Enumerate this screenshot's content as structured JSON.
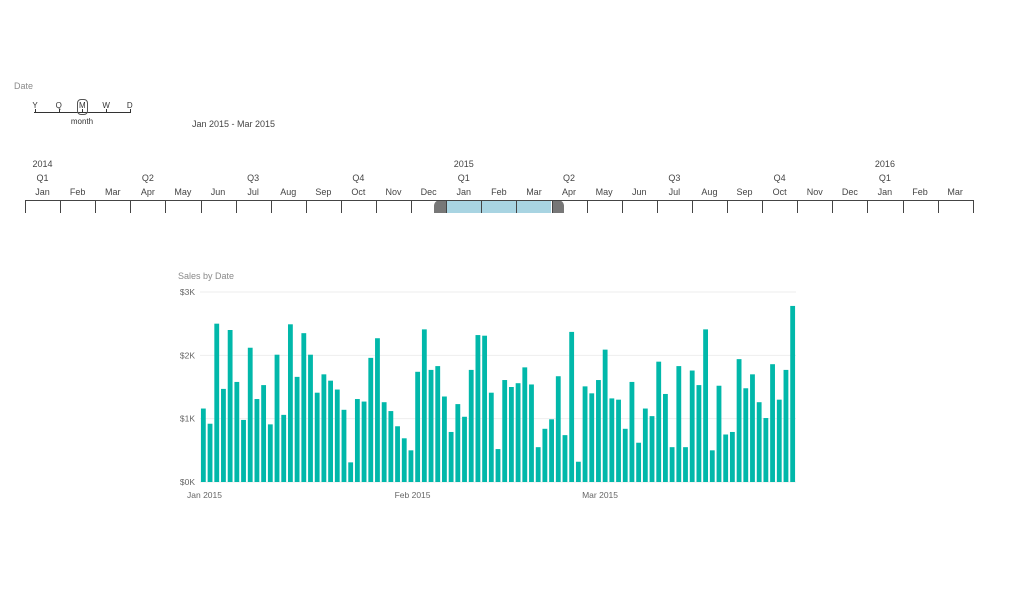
{
  "slicer": {
    "label": "Date",
    "granularity_letters": [
      "Y",
      "Q",
      "M",
      "W",
      "D"
    ],
    "selected_granularity": "M",
    "granularity_caption": "month",
    "range_label": "Jan 2015 - Mar 2015"
  },
  "timeline": {
    "months": [
      "Jan",
      "Feb",
      "Mar",
      "Apr",
      "May",
      "Jun",
      "Jul",
      "Aug",
      "Sep",
      "Oct",
      "Nov",
      "Dec",
      "Jan",
      "Feb",
      "Mar",
      "Apr",
      "May",
      "Jun",
      "Jul",
      "Aug",
      "Sep",
      "Oct",
      "Nov",
      "Dec",
      "Jan",
      "Feb",
      "Mar"
    ],
    "quarters": [
      {
        "label": "Q1",
        "month_index": 0
      },
      {
        "label": "Q2",
        "month_index": 3
      },
      {
        "label": "Q3",
        "month_index": 6
      },
      {
        "label": "Q4",
        "month_index": 9
      },
      {
        "label": "Q1",
        "month_index": 12
      },
      {
        "label": "Q2",
        "month_index": 15
      },
      {
        "label": "Q3",
        "month_index": 18
      },
      {
        "label": "Q4",
        "month_index": 21
      },
      {
        "label": "Q1",
        "month_index": 24
      }
    ],
    "years": [
      {
        "label": "2014",
        "month_index": 0
      },
      {
        "label": "2015",
        "month_index": 12
      },
      {
        "label": "2016",
        "month_index": 24
      }
    ],
    "selection": {
      "start_month_index": 12,
      "end_month_index": 14
    },
    "selection_color": "#a8d4e2",
    "handle_color": "#777777"
  },
  "chart_data": {
    "type": "bar",
    "title": "Sales by Date",
    "bar_color": "#01b8aa",
    "ylim": [
      0,
      3000
    ],
    "y_ticks": [
      {
        "value": 0,
        "label": "$0K"
      },
      {
        "value": 1000,
        "label": "$1K"
      },
      {
        "value": 2000,
        "label": "$2K"
      },
      {
        "value": 3000,
        "label": "$3K"
      }
    ],
    "x_ticks": [
      {
        "day_index": 0,
        "label": "Jan 2015"
      },
      {
        "day_index": 31,
        "label": "Feb 2015"
      },
      {
        "day_index": 59,
        "label": "Mar 2015"
      }
    ],
    "grid": true,
    "values": [
      1160,
      920,
      2500,
      1470,
      2400,
      1580,
      980,
      2120,
      1310,
      1530,
      910,
      2010,
      1060,
      2490,
      1660,
      2350,
      2010,
      1410,
      1700,
      1600,
      1460,
      1140,
      310,
      1310,
      1270,
      1960,
      2270,
      1260,
      1120,
      880,
      690,
      500,
      1740,
      2410,
      1770,
      1830,
      1350,
      790,
      1230,
      1030,
      1770,
      2320,
      2310,
      1410,
      520,
      1610,
      1500,
      1560,
      1810,
      1540,
      550,
      840,
      990,
      1670,
      740,
      2370,
      320,
      1510,
      1400,
      1610,
      2090,
      1320,
      1300,
      840,
      1580,
      620,
      1160,
      1040,
      1900,
      1390,
      550,
      1830,
      550,
      1760,
      1530,
      2410,
      500,
      1520,
      750,
      790,
      1940,
      1480,
      1700,
      1260,
      1010,
      1860,
      1300,
      1770,
      2780
    ]
  }
}
